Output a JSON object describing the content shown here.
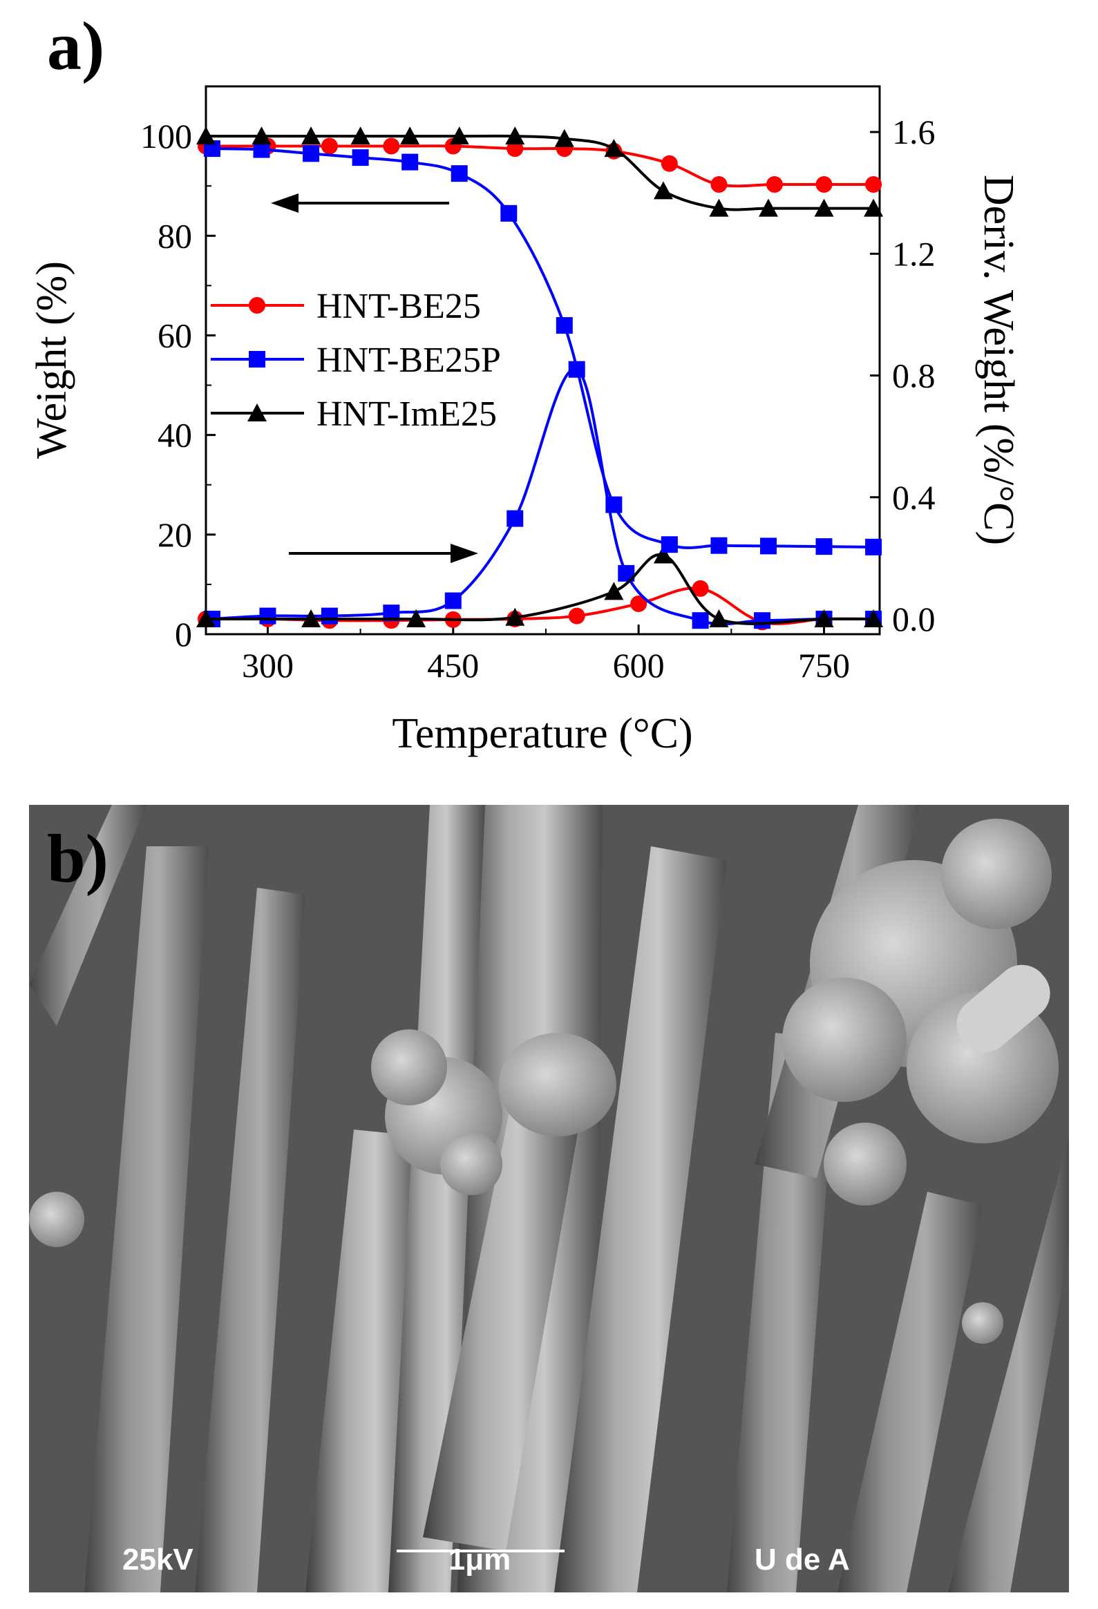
{
  "panel_a": {
    "label": "a)",
    "chart_data": {
      "type": "line",
      "xlabel": "Temperature (°C)",
      "ylabel": "Weight (%)",
      "y2label": "Deriv. Weight (%/°C)",
      "xlim": [
        250,
        795
      ],
      "ylim": [
        0,
        110
      ],
      "y2lim": [
        -0.05,
        1.75
      ],
      "xticks": [
        300,
        450,
        600,
        750
      ],
      "yticks": [
        0,
        20,
        40,
        60,
        80,
        100
      ],
      "y2ticks": [
        0.0,
        0.4,
        0.8,
        1.2,
        1.6
      ],
      "y2ticklabels": [
        "0.0",
        "0.4",
        "0.8",
        "1.2",
        "1.6"
      ],
      "legend_position": "center-left",
      "weight_series": [
        {
          "name": "HNT-BE25",
          "color": "#ff0000",
          "marker": "circle",
          "x": [
            250,
            300,
            350,
            400,
            450,
            500,
            540,
            580,
            625,
            665,
            710,
            750,
            790
          ],
          "y": [
            98,
            98,
            98,
            98,
            98,
            97.5,
            97.5,
            97,
            94.5,
            90.3,
            90.3,
            90.3,
            90.3
          ]
        },
        {
          "name": "HNT-BE25P",
          "color": "#0000ff",
          "marker": "square",
          "x": [
            255,
            295,
            335,
            375,
            415,
            455,
            495,
            540,
            580,
            625,
            665,
            705,
            750,
            790
          ],
          "y": [
            97.5,
            97.3,
            96.5,
            95.7,
            94.8,
            92.5,
            84.5,
            62,
            26,
            18,
            17.8,
            17.7,
            17.6,
            17.5
          ]
        },
        {
          "name": "HNT-ImE25",
          "color": "#000000",
          "marker": "triangle",
          "x": [
            250,
            295,
            335,
            375,
            415,
            455,
            500,
            540,
            580,
            620,
            665,
            705,
            750,
            790
          ],
          "y": [
            100,
            100,
            100,
            100,
            100,
            100,
            100,
            99.5,
            97.5,
            89,
            85.5,
            85.5,
            85.5,
            85.5
          ]
        }
      ],
      "derivative_series": [
        {
          "name": "HNT-BE25",
          "color": "#ff0000",
          "marker": "circle",
          "x": [
            250,
            300,
            350,
            400,
            450,
            500,
            550,
            600,
            650,
            700,
            750,
            790
          ],
          "y": [
            0.0,
            0.0,
            -0.005,
            -0.005,
            -0.002,
            0.0,
            0.01,
            0.05,
            0.1,
            -0.01,
            0.0,
            0.0
          ]
        },
        {
          "name": "HNT-BE25P",
          "color": "#0000ff",
          "marker": "square",
          "x": [
            255,
            300,
            350,
            400,
            450,
            500,
            550,
            590,
            650,
            700,
            750,
            790
          ],
          "y": [
            0.0,
            0.01,
            0.01,
            0.02,
            0.06,
            0.33,
            0.82,
            0.15,
            -0.005,
            -0.005,
            0.0,
            0.0
          ]
        },
        {
          "name": "HNT-ImE25",
          "color": "#000000",
          "marker": "triangle",
          "x": [
            250,
            335,
            420,
            500,
            580,
            620,
            665,
            750,
            790
          ],
          "y": [
            0.0,
            0.0,
            0.0,
            0.005,
            0.09,
            0.21,
            0.0,
            0.0,
            0.0
          ]
        }
      ]
    }
  },
  "panel_b": {
    "label": "b)",
    "voltage": "25kV",
    "scale_bar": "1μm",
    "institution": "U de A"
  }
}
